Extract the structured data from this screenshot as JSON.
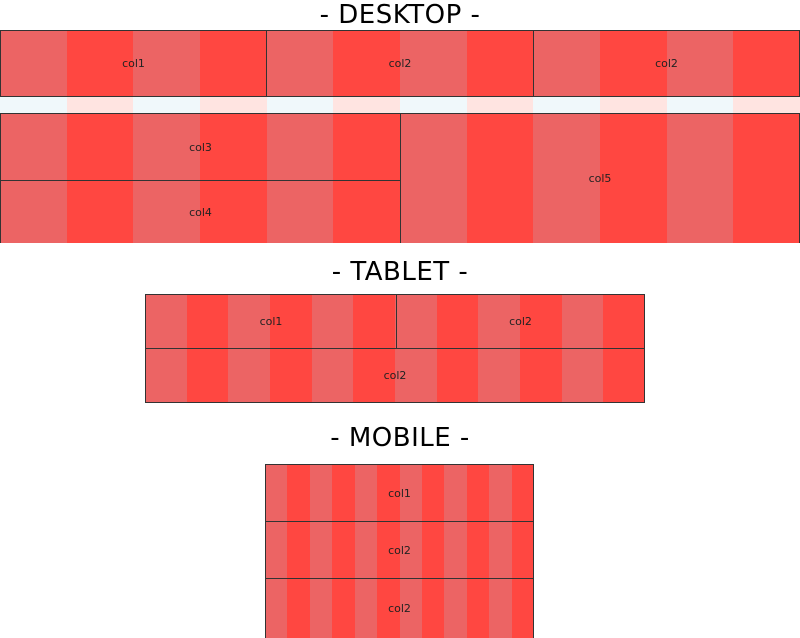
{
  "headings": {
    "desktop": "- DESKTOP -",
    "tablet": "- TABLET -",
    "mobile": "- MOBILE -"
  },
  "desktop": {
    "row1": [
      "col1",
      "col2",
      "col2"
    ],
    "row2_left": [
      "col3",
      "col4"
    ],
    "row2_right": "col5"
  },
  "tablet": {
    "row1": [
      "col1",
      "col2"
    ],
    "row2": "col2"
  },
  "mobile": {
    "rows": [
      "col1",
      "col2",
      "col2"
    ]
  },
  "colors": {
    "stripe_light": "#ec6464",
    "stripe_dark": "#ff4741",
    "gap_light": "#f0f8fb",
    "gap_dark": "#ffe4e1"
  }
}
